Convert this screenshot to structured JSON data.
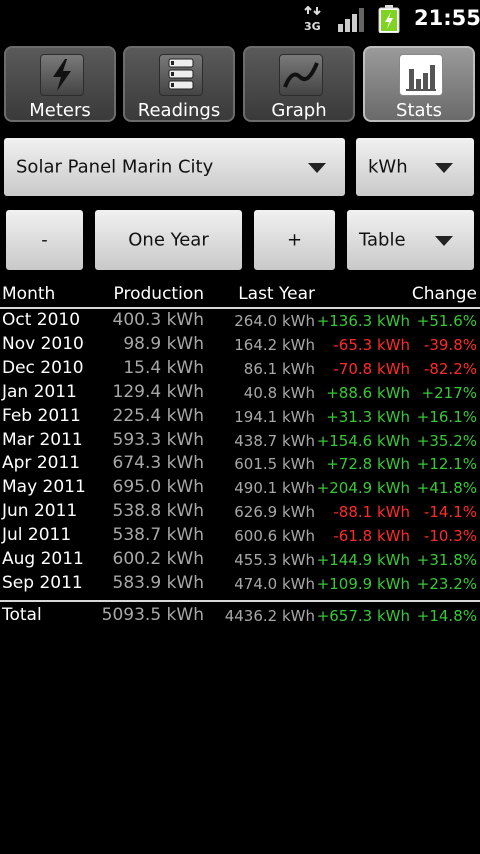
{
  "status_bar": {
    "network": "3G",
    "time": "21:55",
    "icons": [
      "3g-data-icon",
      "signal-bars-icon",
      "battery-charging-icon"
    ]
  },
  "tabs": [
    {
      "label": "Meters",
      "icon": "lightning-icon",
      "active": false
    },
    {
      "label": "Readings",
      "icon": "list-icon",
      "active": false
    },
    {
      "label": "Graph",
      "icon": "line-graph-icon",
      "active": false
    },
    {
      "label": "Stats",
      "icon": "bar-chart-icon",
      "active": true
    }
  ],
  "controls": {
    "meter_select": "Solar Panel Marin City",
    "unit_select": "kWh",
    "minus_label": "-",
    "period_label": "One Year",
    "plus_label": "+",
    "view_select": "Table"
  },
  "table": {
    "headers": {
      "month": "Month",
      "production": "Production",
      "last_year": "Last Year",
      "change": "Change"
    },
    "rows": [
      {
        "month": "Oct 2010",
        "production": "400.3 kWh",
        "last_year": "264.0 kWh",
        "diff": "+136.3 kWh",
        "pct": "+51.6%",
        "trend": "pos"
      },
      {
        "month": "Nov 2010",
        "production": "98.9 kWh",
        "last_year": "164.2 kWh",
        "diff": "-65.3 kWh",
        "pct": "-39.8%",
        "trend": "neg"
      },
      {
        "month": "Dec 2010",
        "production": "15.4 kWh",
        "last_year": "86.1 kWh",
        "diff": "-70.8 kWh",
        "pct": "-82.2%",
        "trend": "neg"
      },
      {
        "month": "Jan 2011",
        "production": "129.4 kWh",
        "last_year": "40.8 kWh",
        "diff": "+88.6 kWh",
        "pct": "+217%",
        "trend": "pos"
      },
      {
        "month": "Feb 2011",
        "production": "225.4 kWh",
        "last_year": "194.1 kWh",
        "diff": "+31.3 kWh",
        "pct": "+16.1%",
        "trend": "pos"
      },
      {
        "month": "Mar 2011",
        "production": "593.3 kWh",
        "last_year": "438.7 kWh",
        "diff": "+154.6 kWh",
        "pct": "+35.2%",
        "trend": "pos"
      },
      {
        "month": "Apr 2011",
        "production": "674.3 kWh",
        "last_year": "601.5 kWh",
        "diff": "+72.8 kWh",
        "pct": "+12.1%",
        "trend": "pos"
      },
      {
        "month": "May 2011",
        "production": "695.0 kWh",
        "last_year": "490.1 kWh",
        "diff": "+204.9 kWh",
        "pct": "+41.8%",
        "trend": "pos"
      },
      {
        "month": "Jun 2011",
        "production": "538.8 kWh",
        "last_year": "626.9 kWh",
        "diff": "-88.1 kWh",
        "pct": "-14.1%",
        "trend": "neg"
      },
      {
        "month": "Jul 2011",
        "production": "538.7 kWh",
        "last_year": "600.6 kWh",
        "diff": "-61.8 kWh",
        "pct": "-10.3%",
        "trend": "neg"
      },
      {
        "month": "Aug 2011",
        "production": "600.2 kWh",
        "last_year": "455.3 kWh",
        "diff": "+144.9 kWh",
        "pct": "+31.8%",
        "trend": "pos"
      },
      {
        "month": "Sep 2011",
        "production": "583.9 kWh",
        "last_year": "474.0 kWh",
        "diff": "+109.9 kWh",
        "pct": "+23.2%",
        "trend": "pos"
      }
    ],
    "total": {
      "month": "Total",
      "production": "5093.5 kWh",
      "last_year": "4436.2 kWh",
      "diff": "+657.3 kWh",
      "pct": "+14.8%",
      "trend": "pos"
    }
  },
  "colors": {
    "positive": "#38c838",
    "negative": "#ff2a2a"
  }
}
